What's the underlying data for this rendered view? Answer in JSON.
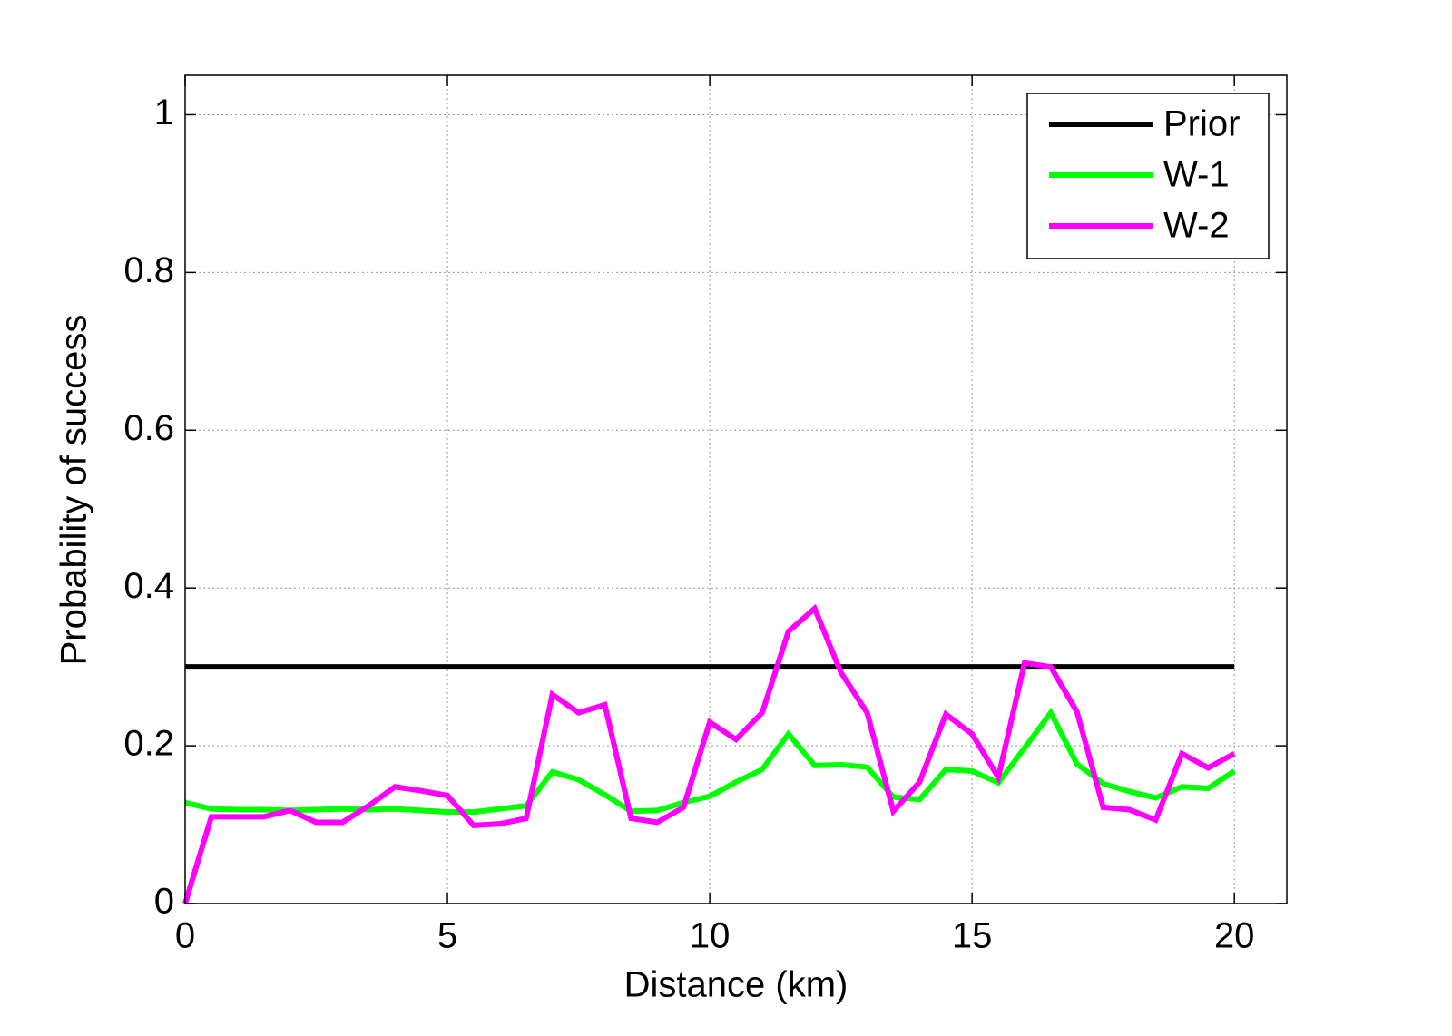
{
  "chart_data": {
    "type": "line",
    "x_label": "Distance (km)",
    "y_label": "Probability of success",
    "x": [
      0,
      0.5,
      1,
      1.5,
      2,
      2.5,
      3,
      3.5,
      4,
      4.5,
      5,
      5.5,
      6,
      6.5,
      7,
      7.5,
      8,
      8.5,
      9,
      9.5,
      10,
      10.5,
      11,
      11.5,
      12,
      12.5,
      13,
      13.5,
      14,
      14.5,
      15,
      15.5,
      16,
      16.5,
      17,
      17.5,
      18,
      18.5,
      19,
      19.5,
      20
    ],
    "series": [
      {
        "name": "Prior",
        "color": "#000000",
        "values": [
          0.3,
          0.3,
          0.3,
          0.3,
          0.3,
          0.3,
          0.3,
          0.3,
          0.3,
          0.3,
          0.3,
          0.3,
          0.3,
          0.3,
          0.3,
          0.3,
          0.3,
          0.3,
          0.3,
          0.3,
          0.3,
          0.3,
          0.3,
          0.3,
          0.3,
          0.3,
          0.3,
          0.3,
          0.3,
          0.3,
          0.3,
          0.3,
          0.3,
          0.3,
          0.3,
          0.3,
          0.3,
          0.3,
          0.3,
          0.3,
          0.3
        ]
      },
      {
        "name": "W-1",
        "color": "#00ff00",
        "values": [
          0.128,
          0.12,
          0.119,
          0.119,
          0.118,
          0.119,
          0.12,
          0.119,
          0.12,
          0.118,
          0.116,
          0.116,
          0.12,
          0.124,
          0.167,
          0.157,
          0.138,
          0.117,
          0.118,
          0.128,
          0.136,
          0.154,
          0.17,
          0.215,
          0.175,
          0.176,
          0.173,
          0.135,
          0.132,
          0.17,
          0.168,
          0.153,
          0.197,
          0.242,
          0.177,
          0.152,
          0.142,
          0.134,
          0.148,
          0.146,
          0.168
        ]
      },
      {
        "name": "W-2",
        "color": "#ff00ff",
        "values": [
          0,
          0.11,
          0.11,
          0.11,
          0.118,
          0.103,
          0.103,
          0.124,
          0.148,
          0.143,
          0.137,
          0.099,
          0.101,
          0.108,
          0.265,
          0.242,
          0.252,
          0.108,
          0.103,
          0.122,
          0.23,
          0.208,
          0.242,
          0.345,
          0.374,
          0.293,
          0.242,
          0.117,
          0.154,
          0.24,
          0.215,
          0.16,
          0.305,
          0.3,
          0.243,
          0.122,
          0.119,
          0.106,
          0.19,
          0.172,
          0.19
        ]
      }
    ],
    "xlim": [
      0,
      21
    ],
    "ylim": [
      0,
      1.05
    ],
    "xticks": [
      0,
      5,
      10,
      15,
      20
    ],
    "yticks": [
      0,
      0.2,
      0.4,
      0.6,
      0.8,
      1
    ],
    "grid": true,
    "legend": "upper right"
  }
}
